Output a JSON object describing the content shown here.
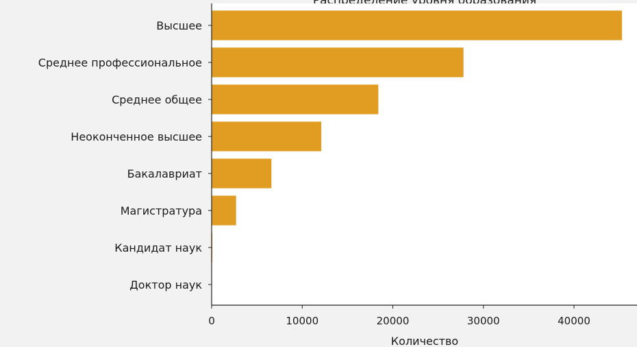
{
  "chart_data": {
    "type": "bar",
    "orientation": "horizontal",
    "title": "Распределение уровня образования",
    "xlabel": "Количество",
    "ylabel": "",
    "categories": [
      "Высшее",
      "Среднее профессиональное",
      "Среднее общее",
      "Неоконченное высшее",
      "Бакалавриат",
      "Магистратура",
      "Кандидат наук",
      "Доктор наук"
    ],
    "values": [
      45300,
      27800,
      18400,
      12100,
      6600,
      2700,
      80,
      40
    ],
    "xlim": [
      0,
      47000
    ],
    "xticks": [
      0,
      10000,
      20000,
      30000,
      40000
    ],
    "xtick_labels": [
      "0",
      "10000",
      "20000",
      "30000",
      "40000"
    ],
    "bar_color": "#e09d22",
    "grid": false,
    "legend": "none"
  }
}
